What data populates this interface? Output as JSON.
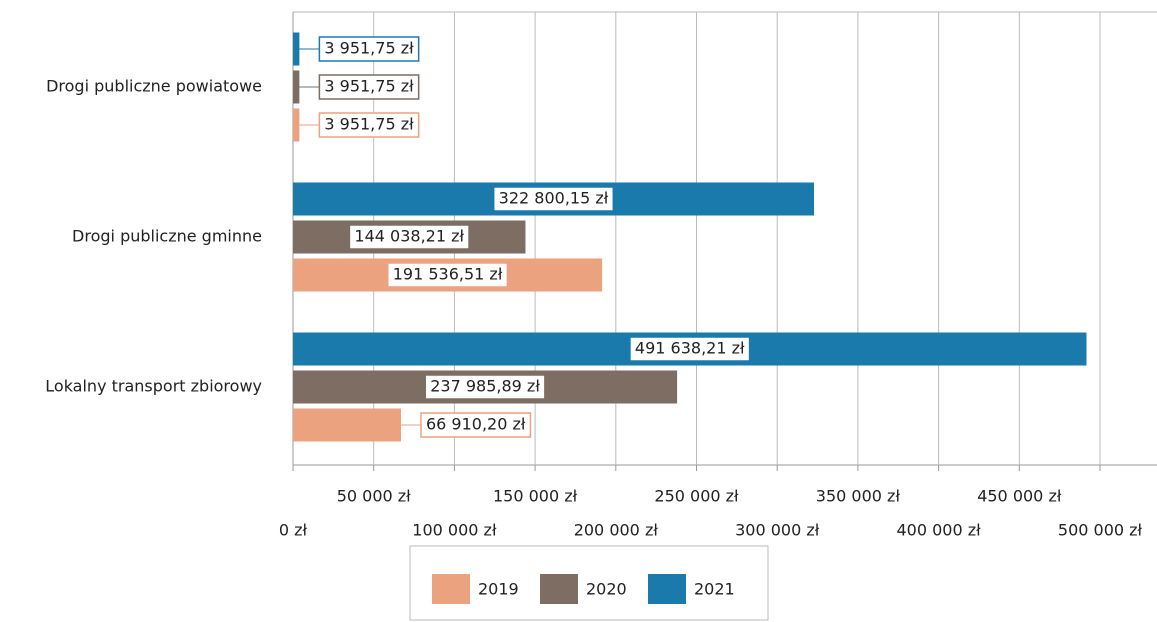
{
  "chart_data": {
    "type": "bar",
    "orientation": "horizontal",
    "categories": [
      "Drogi publiczne powiatowe",
      "Drogi publiczne gminne",
      "Lokalny transport zbiorowy"
    ],
    "series": [
      {
        "name": "2021",
        "color": "#1a7aab",
        "values": [
          3951.75,
          322800.15,
          491638.21
        ],
        "value_labels": [
          "3 951,75 zł",
          "322 800,15 zł",
          "491 638,21 zł"
        ]
      },
      {
        "name": "2020",
        "color": "#7d6d62",
        "values": [
          3951.75,
          144038.21,
          237985.89
        ],
        "value_labels": [
          "3 951,75 zł",
          "144 038,21 zł",
          "237 985,89 zł"
        ]
      },
      {
        "name": "2019",
        "color": "#eba27f",
        "values": [
          3951.75,
          191536.51,
          66910.2
        ],
        "value_labels": [
          "3 951,75 zł",
          "191 536,51 zł",
          "66 910,20 zł"
        ]
      }
    ],
    "xlim": [
      0,
      500000
    ],
    "xticks": [
      {
        "value": 0,
        "label": "0 zł"
      },
      {
        "value": 50000,
        "label": "50 000 zł"
      },
      {
        "value": 100000,
        "label": "100 000 zł"
      },
      {
        "value": 150000,
        "label": "150 000 zł"
      },
      {
        "value": 200000,
        "label": "200 000 zł"
      },
      {
        "value": 250000,
        "label": "250 000 zł"
      },
      {
        "value": 300000,
        "label": "300 000 zł"
      },
      {
        "value": 350000,
        "label": "350 000 zł"
      },
      {
        "value": 400000,
        "label": "400 000 zł"
      },
      {
        "value": 450000,
        "label": "450 000 zł"
      },
      {
        "value": 500000,
        "label": "500 000 zł"
      }
    ],
    "grid": true,
    "legend": "bottom"
  }
}
